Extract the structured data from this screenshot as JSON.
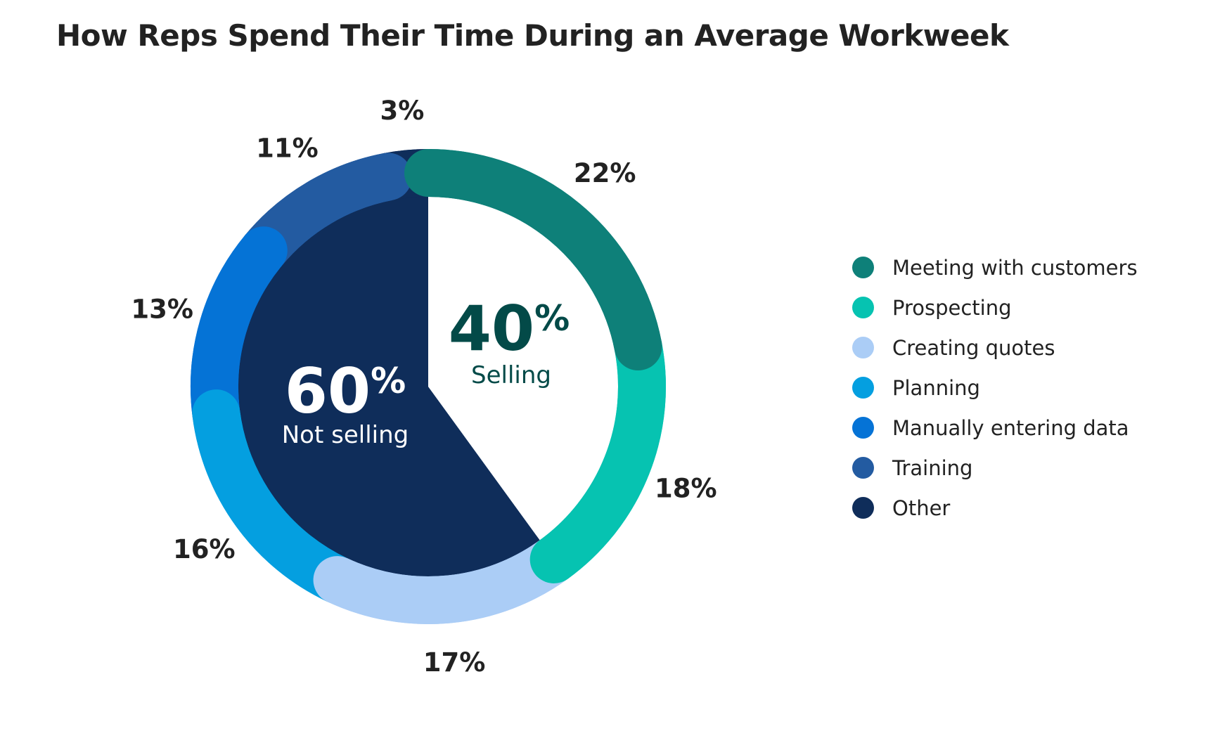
{
  "chart_data": {
    "type": "pie",
    "title": "How Reps Spend Their Time During an Average Workweek",
    "categories": [
      "Meeting with customers",
      "Prospecting",
      "Creating quotes",
      "Planning",
      "Manually entering data",
      "Training",
      "Other"
    ],
    "values": [
      22,
      18,
      17,
      16,
      13,
      11,
      3
    ],
    "labels": [
      "22%",
      "18%",
      "17%",
      "16%",
      "13%",
      "11%",
      "3%"
    ],
    "colors": [
      "#0e8079",
      "#06c3b1",
      "#abcdf6",
      "#049fe0",
      "#0573d6",
      "#235ba1",
      "#0f2d5a"
    ],
    "legend_position": "right",
    "inner": {
      "selling": {
        "value": "40",
        "unit": "%",
        "label": "Selling",
        "share": 40,
        "color": "#034a48"
      },
      "not_selling": {
        "value": "60",
        "unit": "%",
        "label": "Not selling",
        "share": 60,
        "color": "#0f2d5a"
      }
    }
  }
}
